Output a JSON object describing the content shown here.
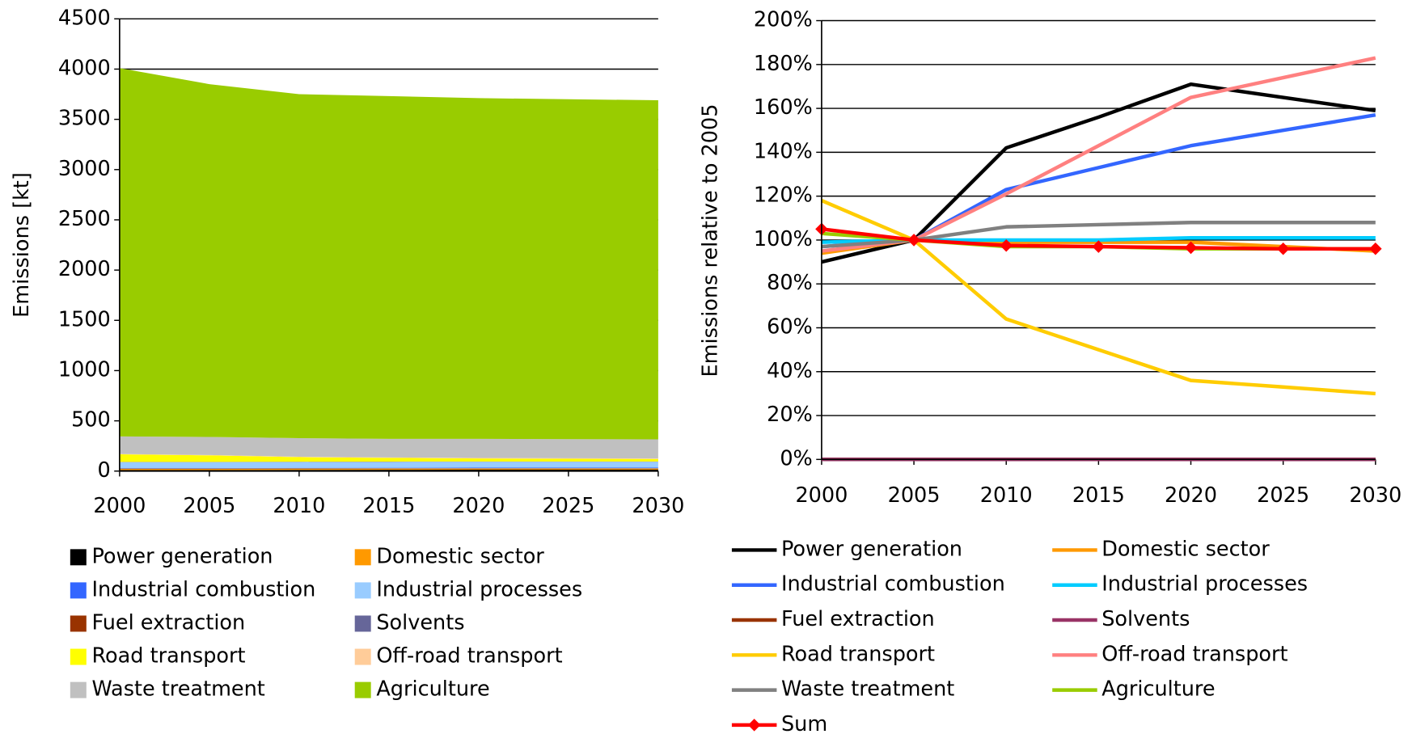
{
  "chart_data": [
    {
      "type": "area",
      "stacked": true,
      "ylabel": "Emissions [kt]",
      "x": [
        2000,
        2005,
        2010,
        2015,
        2020,
        2025,
        2030
      ],
      "xlim": [
        2000,
        2030
      ],
      "xticks": [
        2000,
        2005,
        2010,
        2015,
        2020,
        2025,
        2030
      ],
      "ylim": [
        0,
        4500
      ],
      "yticks": [
        0,
        500,
        1000,
        1500,
        2000,
        2500,
        3000,
        3500,
        4000,
        4500
      ],
      "grid": true,
      "legend": "bottom",
      "series": [
        {
          "name": "Power generation",
          "color": "#000000",
          "values": [
            10,
            10,
            12,
            13,
            14,
            14,
            14
          ]
        },
        {
          "name": "Domestic sector",
          "color": "#ff9900",
          "values": [
            15,
            15,
            14,
            14,
            13,
            13,
            13
          ]
        },
        {
          "name": "Industrial combustion",
          "color": "#3366ff",
          "values": [
            5,
            5,
            6,
            6,
            7,
            7,
            7
          ]
        },
        {
          "name": "Industrial processes",
          "color": "#99ccff",
          "values": [
            60,
            60,
            60,
            60,
            60,
            60,
            60
          ]
        },
        {
          "name": "Fuel extraction",
          "color": "#993300",
          "values": [
            2,
            2,
            2,
            2,
            2,
            2,
            2
          ]
        },
        {
          "name": "Solvents",
          "color": "#666699",
          "values": [
            0,
            0,
            0,
            0,
            0,
            0,
            0
          ]
        },
        {
          "name": "Road transport",
          "color": "#ffff00",
          "values": [
            75,
            65,
            45,
            37,
            30,
            27,
            25
          ]
        },
        {
          "name": "Off-road transport",
          "color": "#ffcc99",
          "values": [
            3,
            3,
            4,
            4,
            5,
            5,
            5
          ]
        },
        {
          "name": "Waste treatment",
          "color": "#c0c0c0",
          "values": [
            175,
            180,
            185,
            185,
            190,
            190,
            190
          ]
        },
        {
          "name": "Agriculture",
          "color": "#99cc00",
          "values": [
            3665,
            3510,
            3422,
            3410,
            3390,
            3382,
            3374
          ]
        }
      ]
    },
    {
      "type": "line",
      "ylabel": "Emissions relative to 2005",
      "x": [
        2000,
        2005,
        2010,
        2015,
        2020,
        2025,
        2030
      ],
      "xlim": [
        2000,
        2030
      ],
      "xticks": [
        2000,
        2005,
        2010,
        2015,
        2020,
        2025,
        2030
      ],
      "ylim": [
        0,
        200
      ],
      "yticks": [
        {
          "value": 0,
          "label": "0%"
        },
        {
          "value": 20,
          "label": "20%"
        },
        {
          "value": 40,
          "label": "40%"
        },
        {
          "value": 60,
          "label": "60%"
        },
        {
          "value": 80,
          "label": "80%"
        },
        {
          "value": 100,
          "label": "100%"
        },
        {
          "value": 120,
          "label": "120%"
        },
        {
          "value": 140,
          "label": "140%"
        },
        {
          "value": 160,
          "label": "160%"
        },
        {
          "value": 180,
          "label": "180%"
        },
        {
          "value": 200,
          "label": "200%"
        }
      ],
      "grid": true,
      "legend": "bottom",
      "series": [
        {
          "name": "Power generation",
          "color": "#000000",
          "values": [
            90,
            100,
            142,
            156,
            171,
            165,
            159
          ]
        },
        {
          "name": "Domestic sector",
          "color": "#ff9900",
          "values": [
            94,
            100,
            99,
            99,
            99,
            97,
            95
          ]
        },
        {
          "name": "Industrial combustion",
          "color": "#3366ff",
          "values": [
            97,
            100,
            123,
            133,
            143,
            150,
            157
          ]
        },
        {
          "name": "Industrial processes",
          "color": "#00ccff",
          "values": [
            99,
            100,
            100,
            100,
            101,
            101,
            101
          ]
        },
        {
          "name": "Fuel extraction",
          "color": "#993300",
          "values": [
            0,
            0,
            0,
            0,
            0,
            0,
            0
          ]
        },
        {
          "name": "Solvents",
          "color": "#993366",
          "values": [
            0,
            0,
            0,
            0,
            0,
            0,
            0
          ]
        },
        {
          "name": "Road transport",
          "color": "#ffcc00",
          "values": [
            118,
            100,
            64,
            50,
            36,
            33,
            30
          ]
        },
        {
          "name": "Off-road transport",
          "color": "#ff8080",
          "values": [
            95,
            100,
            121,
            143,
            165,
            174,
            183
          ]
        },
        {
          "name": "Waste treatment",
          "color": "#808080",
          "values": [
            97,
            100,
            106,
            107,
            108,
            108,
            108
          ]
        },
        {
          "name": "Agriculture",
          "color": "#99cc00",
          "values": [
            103,
            100,
            97,
            97,
            96,
            96,
            96
          ]
        },
        {
          "name": "Sum",
          "color": "#ff0000",
          "marker": "diamond",
          "values": [
            105,
            100,
            97.5,
            97,
            96.5,
            96,
            96
          ]
        }
      ]
    }
  ]
}
